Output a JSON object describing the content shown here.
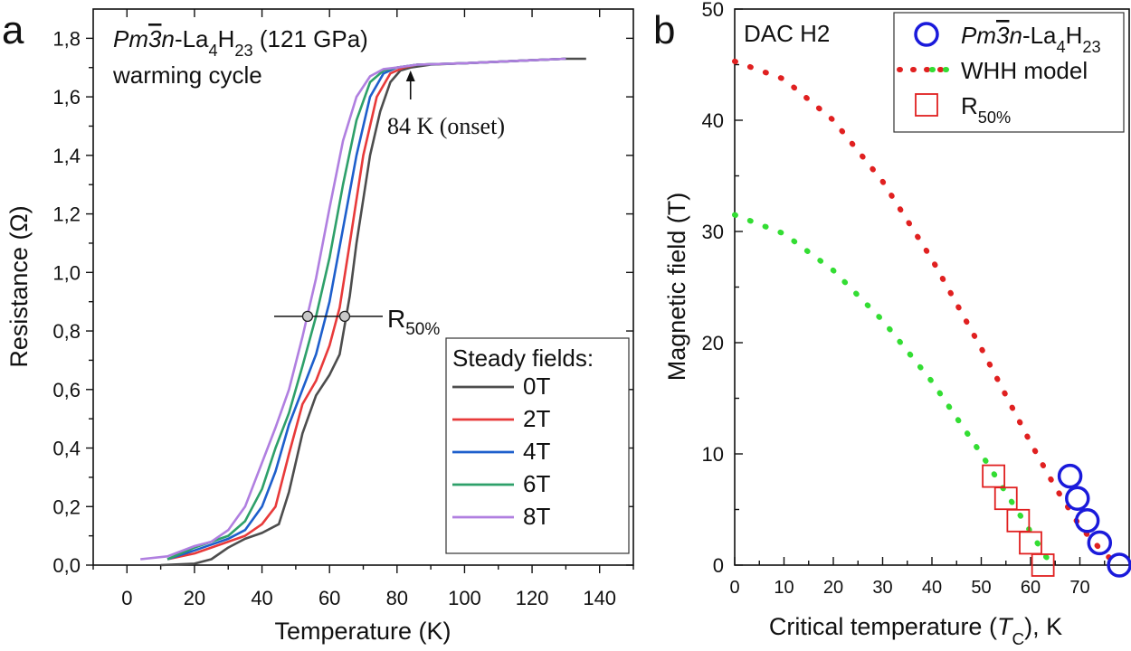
{
  "panel_a": {
    "label": "a",
    "title_html": "<tspan font-style='italic'>Pm</tspan><tspan font-style='italic' text-decoration='overline'>3</tspan><tspan font-style='italic'>n</tspan>-La<tspan baseline-shift='sub' font-size='70%'>4</tspan>H<tspan baseline-shift='sub' font-size='70%'>23</tspan> (121 GPa)",
    "subtitle": "warming cycle",
    "onset_label": "84 K (onset)",
    "r50_label_main": "R",
    "r50_label_sub": "50%",
    "legend_title": "Steady fields:"
  },
  "panel_b": {
    "label": "b",
    "corner_label": "DAC H2"
  },
  "chart_data": [
    {
      "type": "line",
      "xlabel": "Temperature (K)",
      "ylabel": "Resistance (Ω)",
      "xlim": [
        -10,
        150
      ],
      "ylim": [
        0,
        1.9
      ],
      "xticks": [
        0,
        20,
        40,
        60,
        80,
        100,
        120,
        140
      ],
      "yticks": [
        "0,0",
        "0,2",
        "0,4",
        "0,6",
        "0,8",
        "1,0",
        "1,2",
        "1,4",
        "1,6",
        "1,8"
      ],
      "yticks_values": [
        0,
        0.2,
        0.4,
        0.6,
        0.8,
        1.0,
        1.2,
        1.4,
        1.6,
        1.8
      ],
      "legend_position": "bottom-right",
      "annotation_onset_T": 84,
      "r50_level": 0.85,
      "r50_markers_T": [
        53.5,
        64.5
      ],
      "series": [
        {
          "name": "0T",
          "color": "#4d4d4d",
          "x": [
            10,
            20,
            25,
            30,
            35,
            40,
            45,
            48,
            52,
            56,
            60,
            63,
            66,
            68,
            70,
            72,
            75,
            78,
            81,
            84,
            90,
            100,
            110,
            120,
            130,
            136
          ],
          "y": [
            0.0,
            0.005,
            0.02,
            0.06,
            0.09,
            0.11,
            0.14,
            0.25,
            0.45,
            0.58,
            0.65,
            0.72,
            0.92,
            1.1,
            1.25,
            1.4,
            1.55,
            1.65,
            1.69,
            1.7,
            1.71,
            1.715,
            1.72,
            1.725,
            1.73,
            1.73
          ]
        },
        {
          "name": "2T",
          "color": "#e83a3a",
          "x": [
            12,
            20,
            25,
            30,
            35,
            40,
            44,
            48,
            52,
            56,
            60,
            63,
            66,
            70,
            74,
            78,
            82,
            86,
            100,
            120,
            130
          ],
          "y": [
            0.02,
            0.04,
            0.06,
            0.08,
            0.1,
            0.14,
            0.2,
            0.38,
            0.55,
            0.63,
            0.75,
            0.88,
            1.1,
            1.4,
            1.6,
            1.68,
            1.7,
            1.71,
            1.715,
            1.725,
            1.73
          ]
        },
        {
          "name": "4T",
          "color": "#1e5fcc",
          "x": [
            12,
            20,
            25,
            30,
            35,
            40,
            44,
            48,
            52,
            56,
            60,
            64,
            68,
            72,
            76,
            80,
            86,
            100,
            120,
            130
          ],
          "y": [
            0.02,
            0.05,
            0.07,
            0.09,
            0.12,
            0.2,
            0.32,
            0.48,
            0.6,
            0.72,
            0.9,
            1.15,
            1.4,
            1.6,
            1.68,
            1.7,
            1.71,
            1.715,
            1.725,
            1.73
          ]
        },
        {
          "name": "6T",
          "color": "#2ea06a",
          "x": [
            12,
            20,
            25,
            30,
            35,
            40,
            44,
            48,
            52,
            56,
            60,
            64,
            68,
            72,
            76,
            80,
            86,
            100,
            120,
            130
          ],
          "y": [
            0.02,
            0.06,
            0.08,
            0.1,
            0.15,
            0.26,
            0.4,
            0.52,
            0.68,
            0.85,
            1.05,
            1.3,
            1.52,
            1.65,
            1.69,
            1.7,
            1.71,
            1.715,
            1.725,
            1.73
          ]
        },
        {
          "name": "8T",
          "color": "#b07fe0",
          "x": [
            4,
            12,
            20,
            25,
            30,
            35,
            40,
            44,
            48,
            52,
            56,
            60,
            64,
            68,
            72,
            76,
            80,
            86,
            100,
            120,
            130
          ],
          "y": [
            0.02,
            0.03,
            0.065,
            0.08,
            0.12,
            0.2,
            0.35,
            0.47,
            0.6,
            0.78,
            0.98,
            1.22,
            1.45,
            1.6,
            1.67,
            1.695,
            1.7,
            1.71,
            1.715,
            1.725,
            1.73
          ]
        }
      ]
    },
    {
      "type": "scatter",
      "xlabel_html": "Critical temperature (<tspan font-style='italic'>T</tspan><tspan baseline-shift='sub' font-size='70%'>C</tspan>), K",
      "ylabel": "Magnetic field (T)",
      "xlim": [
        0,
        80
      ],
      "ylim": [
        0,
        50
      ],
      "xticks": [
        0,
        10,
        20,
        30,
        40,
        50,
        60,
        70
      ],
      "yticks": [
        0,
        10,
        20,
        30,
        40,
        50
      ],
      "legend_position": "top-right",
      "series": [
        {
          "name_html": "<tspan font-style='italic'>Pm</tspan><tspan font-style='italic' text-decoration='overline'>3</tspan><tspan font-style='italic'>n</tspan>-La<tspan baseline-shift='sub' font-size='70%'>4</tspan>H<tspan baseline-shift='sub' font-size='70%'>23</tspan>",
          "kind": "circle",
          "color": "#1a1adb",
          "x": [
            68,
            69.5,
            71.5,
            74,
            78
          ],
          "y": [
            8,
            6,
            4,
            2,
            0
          ]
        },
        {
          "name": "WHH model",
          "kind": "dotted",
          "colors": [
            "#e02020",
            "#33dd33"
          ],
          "curves": [
            {
              "color": "#e02020",
              "x": [
                0,
                10,
                20,
                30,
                40,
                50,
                60,
                65,
                70,
                75,
                78
              ],
              "y": [
                45.3,
                43.7,
                40.0,
                34.5,
                27.5,
                19.5,
                11.0,
                7.0,
                3.5,
                1.0,
                0
              ]
            },
            {
              "color": "#33dd33",
              "x": [
                0,
                10,
                20,
                30,
                40,
                50,
                55,
                60,
                63,
                65
              ],
              "y": [
                31.5,
                29.8,
                26.5,
                22.0,
                16.5,
                10.0,
                6.5,
                3.0,
                0.8,
                0
              ]
            }
          ]
        },
        {
          "name_html": "R<tspan baseline-shift='sub' font-size='70%'>50%</tspan>",
          "kind": "square",
          "color": "#e02020",
          "x": [
            52.5,
            55,
            57.5,
            60,
            62.5
          ],
          "y": [
            8,
            6,
            4,
            2,
            0
          ]
        }
      ]
    }
  ]
}
